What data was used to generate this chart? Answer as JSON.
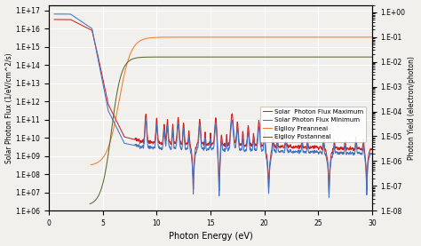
{
  "xlabel": "Photon Energy (eV)",
  "ylabel_left": "Solar Photon Flux (1/eV/cm^2/s)",
  "ylabel_right": "Photon Yield (electron/photon)",
  "ylim_left": [
    1000000.0,
    2e+17
  ],
  "ylim_right": [
    1e-08,
    2.0
  ],
  "xlim": [
    0,
    30
  ],
  "legend_labels": [
    "Solar  Photon Flux Maximum",
    "Solar Photon Flux Minimum",
    "Elgiloy Preanneal",
    "Elgiloy Postanneal"
  ],
  "legend_colors": [
    "#cc2222",
    "#4472c4",
    "#ed7d31",
    "#556b2f"
  ],
  "background_color": "#f2f0ed",
  "grid_color": "#ffffff"
}
